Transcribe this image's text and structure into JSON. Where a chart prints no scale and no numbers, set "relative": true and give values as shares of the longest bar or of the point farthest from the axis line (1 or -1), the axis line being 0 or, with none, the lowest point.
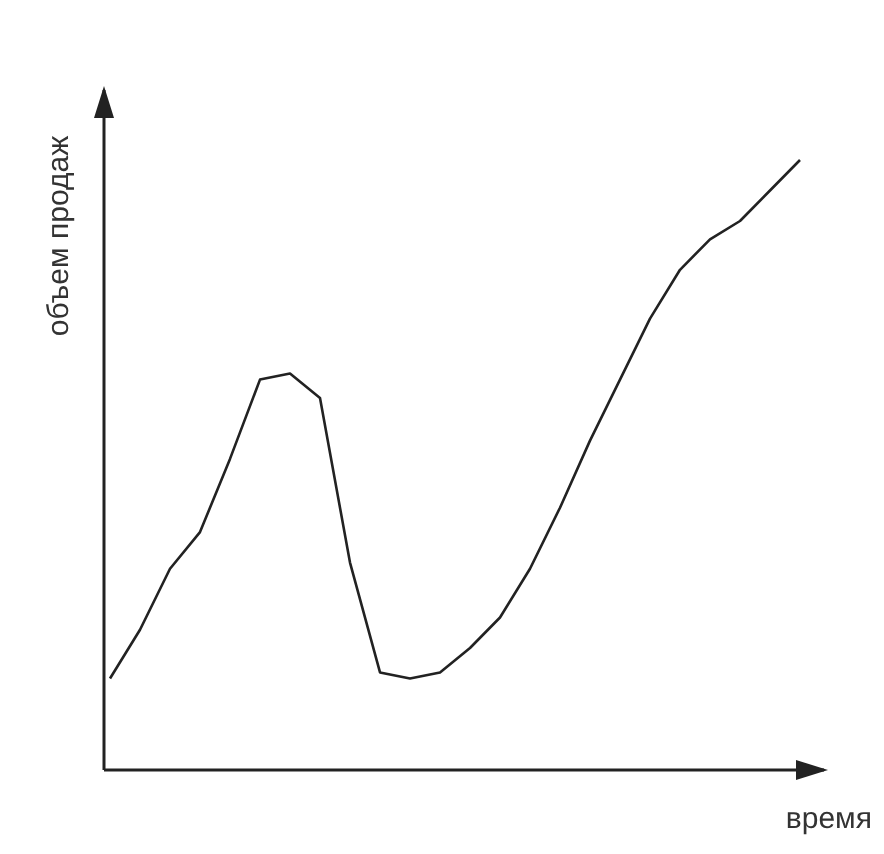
{
  "chart_data": {
    "type": "line",
    "relative": true,
    "xlabel": "время",
    "ylabel": "объем продаж",
    "categories": [
      null,
      null,
      null,
      null,
      null,
      null,
      null,
      null,
      null,
      null,
      null,
      null,
      null,
      null,
      null,
      null,
      null,
      null,
      null,
      null,
      null,
      null,
      null,
      null
    ],
    "series": [
      {
        "color": "#222222",
        "values": [
          0.15,
          0.23,
          0.33,
          0.39,
          0.51,
          0.64,
          0.65,
          0.61,
          0.34,
          0.16,
          0.15,
          0.16,
          0.2,
          0.25,
          0.33,
          0.43,
          0.54,
          0.64,
          0.74,
          0.82,
          0.87,
          0.9,
          0.95,
          1
        ]
      }
    ],
    "marker": "none",
    "line_style": "solid",
    "grid": false,
    "legend": false
  }
}
